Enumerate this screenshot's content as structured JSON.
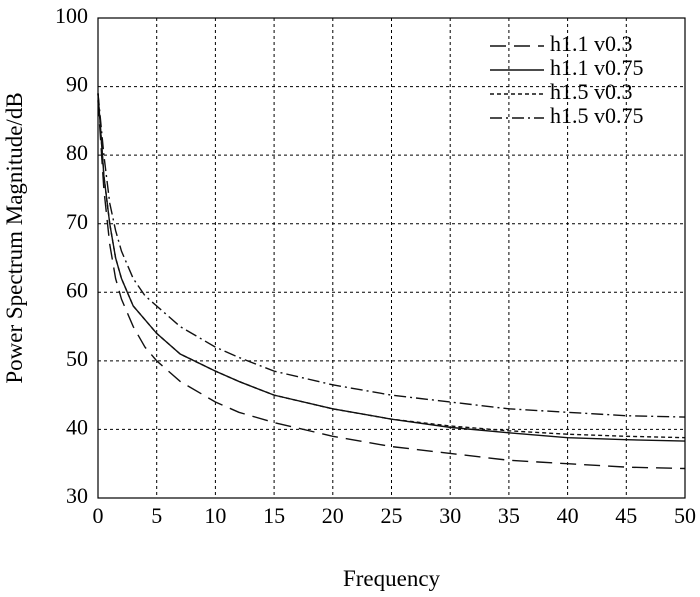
{
  "chart_data": {
    "type": "line",
    "title": "",
    "xlabel": "Frequency",
    "ylabel": "Power Spectrum Magnitude/dB",
    "xlim": [
      0,
      50
    ],
    "ylim": [
      30,
      100
    ],
    "xticks": [
      0,
      5,
      10,
      15,
      20,
      25,
      30,
      35,
      40,
      45,
      50
    ],
    "yticks": [
      30,
      40,
      50,
      60,
      70,
      80,
      90,
      100
    ],
    "grid": true,
    "legend_position": "top-right",
    "series": [
      {
        "name": "h1.1 v0.3",
        "line_style": "long-dash",
        "x": [
          0,
          0.5,
          1,
          1.5,
          2,
          3,
          4,
          5,
          7,
          10,
          12,
          15,
          20,
          25,
          30,
          35,
          40,
          45,
          50
        ],
        "y": [
          88,
          75,
          67,
          62,
          59,
          55,
          52,
          50,
          47,
          44,
          42.5,
          41,
          39,
          37.5,
          36.5,
          35.5,
          35,
          34.5,
          34.3
        ]
      },
      {
        "name": "h1.1 v0.75",
        "line_style": "solid",
        "x": [
          0,
          0.5,
          1,
          1.5,
          2,
          3,
          4,
          5,
          7,
          10,
          12,
          15,
          20,
          25,
          30,
          35,
          40,
          45,
          50
        ],
        "y": [
          89,
          77,
          70,
          65,
          62,
          58,
          56,
          54,
          51,
          48.5,
          47,
          45,
          43,
          41.5,
          40.3,
          39.5,
          38.8,
          38.5,
          38.3
        ]
      },
      {
        "name": "h1.5 v0.3",
        "line_style": "short-dash",
        "x": [
          0,
          0.5,
          1,
          1.5,
          2,
          3,
          4,
          5,
          7,
          10,
          12,
          15,
          20,
          25,
          30,
          35,
          40,
          45,
          50
        ],
        "y": [
          89,
          77,
          70,
          65,
          62,
          58,
          56,
          54,
          51,
          48.5,
          47,
          45,
          43,
          41.5,
          40.5,
          39.8,
          39.3,
          39,
          38.8
        ]
      },
      {
        "name": "h1.5 v0.75",
        "line_style": "dash-dot",
        "x": [
          0,
          0.5,
          1,
          1.5,
          2,
          3,
          4,
          5,
          7,
          10,
          12,
          15,
          20,
          25,
          30,
          35,
          40,
          45,
          50
        ],
        "y": [
          89,
          80,
          73,
          69,
          66,
          62,
          59.5,
          58,
          55,
          52,
          50.5,
          48.5,
          46.5,
          45,
          44,
          43,
          42.5,
          42,
          41.8
        ]
      }
    ]
  }
}
